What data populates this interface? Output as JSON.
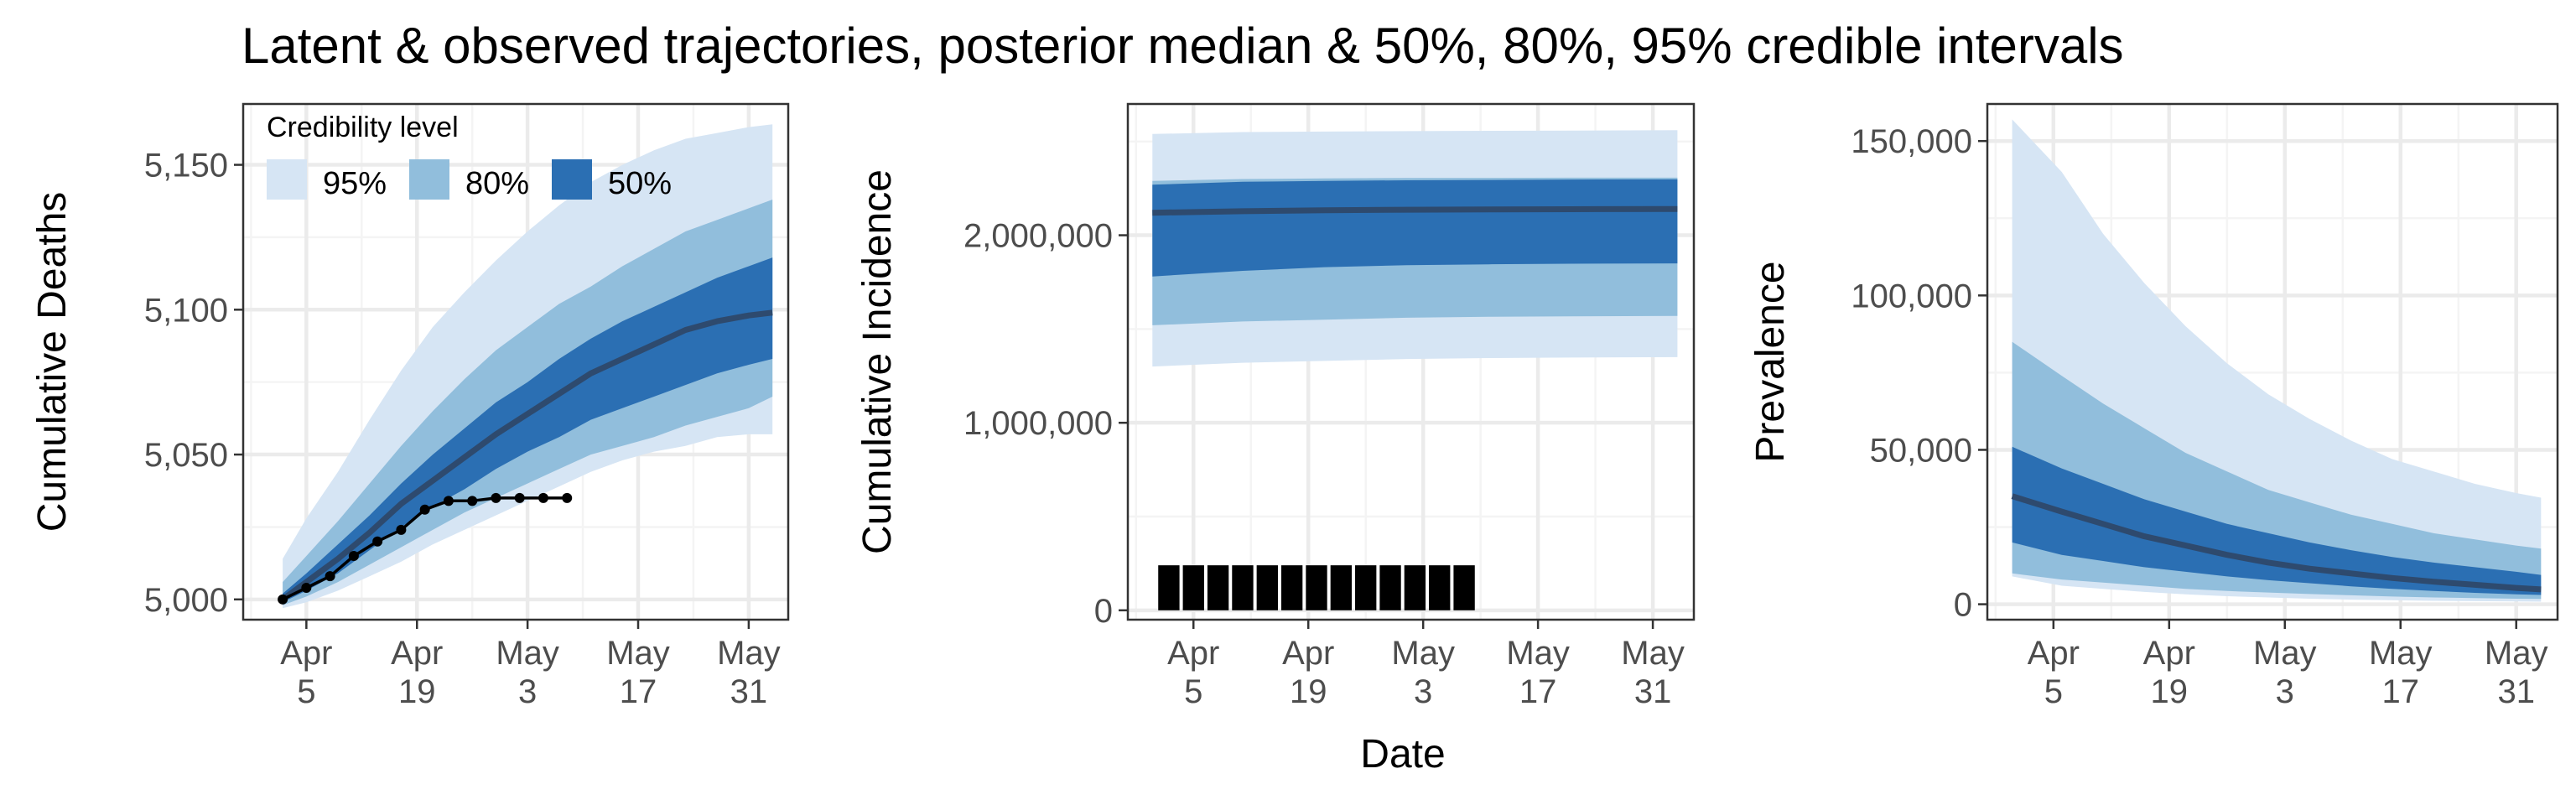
{
  "title": "Latent & observed trajectories, posterior median & 50%, 80%, 95% credible intervals",
  "x_axis_title": "Date",
  "colors": {
    "band95": "#d6e5f4",
    "band80": "#91bedc",
    "band50": "#2b6fb3",
    "median": "#2e4a6e",
    "observed": "#000000"
  },
  "legend": {
    "title": "Credibility level",
    "items": [
      {
        "label": "95%",
        "color": "#d6e5f4"
      },
      {
        "label": "80%",
        "color": "#91bedc"
      },
      {
        "label": "50%",
        "color": "#2b6fb3"
      }
    ]
  },
  "chart_data": [
    {
      "type": "area",
      "ylabel": "Cumulative Deaths",
      "xlim": [
        -4,
        65
      ],
      "ylim": [
        4993,
        5171
      ],
      "x_ticks": [
        {
          "value": 4,
          "line1": "Apr",
          "line2": "5"
        },
        {
          "value": 18,
          "line1": "Apr",
          "line2": "19"
        },
        {
          "value": 32,
          "line1": "May",
          "line2": "3"
        },
        {
          "value": 46,
          "line1": "May",
          "line2": "17"
        },
        {
          "value": 60,
          "line1": "May",
          "line2": "31"
        }
      ],
      "y_ticks": [
        {
          "value": 5000,
          "label": "5,000"
        },
        {
          "value": 5050,
          "label": "5,050"
        },
        {
          "value": 5100,
          "label": "5,100"
        },
        {
          "value": 5150,
          "label": "5,150"
        }
      ],
      "x": [
        1,
        4,
        8,
        12,
        16,
        20,
        24,
        28,
        32,
        36,
        40,
        44,
        48,
        52,
        56,
        60,
        63
      ],
      "median": [
        5000,
        5006,
        5014,
        5023,
        5033,
        5041,
        5049,
        5057,
        5064,
        5071,
        5078,
        5083,
        5088,
        5093,
        5096,
        5098,
        5099
      ],
      "lo50": [
        4999,
        5003,
        5009,
        5017,
        5025,
        5032,
        5038,
        5045,
        5051,
        5056,
        5062,
        5066,
        5070,
        5074,
        5078,
        5081,
        5083
      ],
      "hi50": [
        5002,
        5009,
        5019,
        5029,
        5040,
        5050,
        5059,
        5068,
        5075,
        5083,
        5090,
        5096,
        5101,
        5106,
        5111,
        5115,
        5118
      ],
      "lo80": [
        4998,
        5001,
        5006,
        5012,
        5018,
        5024,
        5030,
        5035,
        5040,
        5045,
        5050,
        5053,
        5056,
        5060,
        5063,
        5066,
        5070
      ],
      "hi80": [
        5006,
        5015,
        5027,
        5040,
        5053,
        5065,
        5076,
        5086,
        5094,
        5102,
        5108,
        5115,
        5121,
        5127,
        5131,
        5135,
        5138
      ],
      "lo95": [
        4997,
        4999,
        5003,
        5008,
        5013,
        5019,
        5024,
        5029,
        5034,
        5039,
        5044,
        5048,
        5051,
        5053,
        5056,
        5057,
        5057
      ],
      "hi95": [
        5014,
        5028,
        5044,
        5062,
        5079,
        5094,
        5106,
        5117,
        5127,
        5136,
        5144,
        5150,
        5155,
        5159,
        5161,
        5163,
        5164
      ],
      "observed": {
        "x": [
          1,
          4,
          7,
          10,
          13,
          16,
          19,
          22,
          25,
          28,
          31,
          34,
          37
        ],
        "y": [
          5000,
          5004,
          5008,
          5015,
          5020,
          5024,
          5031,
          5034,
          5034,
          5035,
          5035,
          5035,
          5035
        ]
      }
    },
    {
      "type": "area",
      "ylabel": "Cumulative Incidence",
      "xlim": [
        -4,
        65
      ],
      "ylim": [
        -50000,
        2700000
      ],
      "x_ticks": [
        {
          "value": 4,
          "line1": "Apr",
          "line2": "5"
        },
        {
          "value": 18,
          "line1": "Apr",
          "line2": "19"
        },
        {
          "value": 32,
          "line1": "May",
          "line2": "3"
        },
        {
          "value": 46,
          "line1": "May",
          "line2": "17"
        },
        {
          "value": 60,
          "line1": "May",
          "line2": "31"
        }
      ],
      "y_ticks": [
        {
          "value": 0,
          "label": "0"
        },
        {
          "value": 1000000,
          "label": "1,000,000"
        },
        {
          "value": 2000000,
          "label": "2,000,000"
        }
      ],
      "x": [
        -1,
        10,
        20,
        30,
        40,
        50,
        63
      ],
      "median": [
        2120000,
        2128000,
        2133000,
        2136000,
        2138000,
        2139000,
        2140000
      ],
      "lo50": [
        1780000,
        1810000,
        1830000,
        1840000,
        1845000,
        1848000,
        1850000
      ],
      "hi50": [
        2270000,
        2285000,
        2290000,
        2293000,
        2295000,
        2297000,
        2298000
      ],
      "lo80": [
        1520000,
        1540000,
        1550000,
        1560000,
        1565000,
        1568000,
        1570000
      ],
      "hi80": [
        2290000,
        2300000,
        2303000,
        2305000,
        2306000,
        2307000,
        2307000
      ],
      "lo95": [
        1300000,
        1320000,
        1330000,
        1340000,
        1345000,
        1348000,
        1350000
      ],
      "hi95": [
        2540000,
        2550000,
        2553000,
        2555000,
        2557000,
        2558000,
        2560000
      ],
      "observed": {
        "x": [
          1,
          4,
          7,
          10,
          13,
          16,
          19,
          22,
          25,
          28,
          31,
          34,
          37
        ],
        "y": [
          240000,
          240000,
          240000,
          240000,
          240000,
          240000,
          240000,
          240000,
          240000,
          240000,
          240000,
          240000,
          240000
        ]
      }
    },
    {
      "type": "area",
      "ylabel": "Prevalence",
      "xlim": [
        -4,
        65
      ],
      "ylim": [
        -5000,
        162000
      ],
      "x_ticks": [
        {
          "value": 4,
          "line1": "Apr",
          "line2": "5"
        },
        {
          "value": 18,
          "line1": "Apr",
          "line2": "19"
        },
        {
          "value": 32,
          "line1": "May",
          "line2": "3"
        },
        {
          "value": 46,
          "line1": "May",
          "line2": "17"
        },
        {
          "value": 60,
          "line1": "May",
          "line2": "31"
        }
      ],
      "y_ticks": [
        {
          "value": 0,
          "label": "0"
        },
        {
          "value": 50000,
          "label": "50,000"
        },
        {
          "value": 100000,
          "label": "100,000"
        },
        {
          "value": 150000,
          "label": "150,000"
        }
      ],
      "x": [
        -1,
        5,
        10,
        15,
        20,
        25,
        30,
        35,
        40,
        45,
        50,
        55,
        60,
        63
      ],
      "median": [
        35000,
        30000,
        26000,
        22000,
        19000,
        16000,
        13500,
        11500,
        10000,
        8500,
        7300,
        6300,
        5300,
        4800
      ],
      "lo50": [
        20000,
        16000,
        14000,
        12000,
        10500,
        9000,
        7800,
        6800,
        5800,
        5000,
        4300,
        3700,
        3200,
        3000
      ],
      "hi50": [
        51000,
        44000,
        39000,
        34000,
        30000,
        26000,
        23000,
        20000,
        17500,
        15300,
        13500,
        12000,
        10500,
        9500
      ],
      "lo80": [
        10000,
        8000,
        7000,
        6000,
        5000,
        4300,
        3800,
        3300,
        2900,
        2500,
        2200,
        2000,
        1800,
        1700
      ],
      "hi80": [
        85000,
        74000,
        65000,
        57000,
        49000,
        43000,
        37000,
        33000,
        29000,
        26000,
        23000,
        21000,
        19000,
        18000
      ],
      "lo95": [
        9000,
        6000,
        5000,
        4000,
        3200,
        2600,
        2200,
        1800,
        1500,
        1300,
        1100,
        1000,
        900,
        850
      ],
      "hi95": [
        157000,
        140000,
        120000,
        104000,
        90000,
        78000,
        68000,
        60000,
        53000,
        47000,
        43000,
        39000,
        36000,
        34500
      ],
      "observed": null
    }
  ]
}
